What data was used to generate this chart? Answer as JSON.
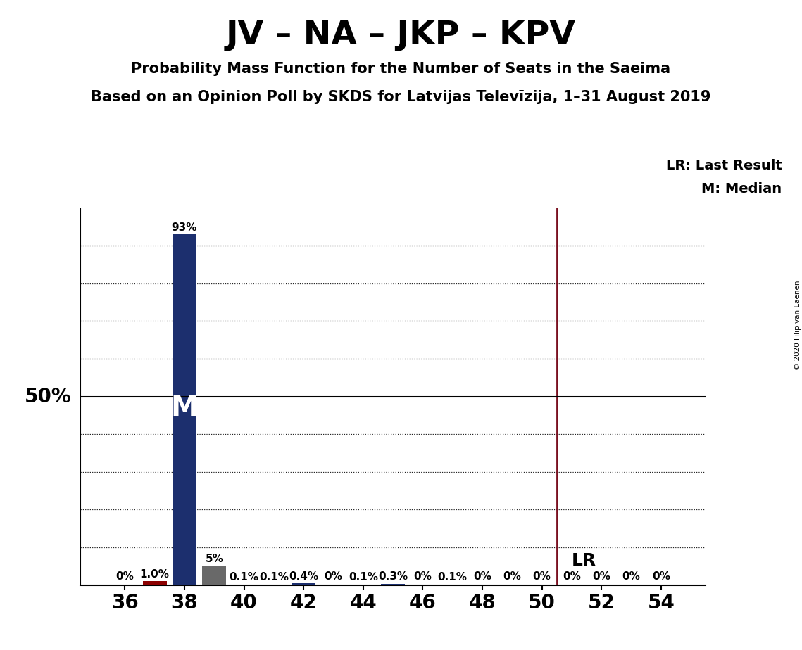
{
  "title": "JV – NA – JKP – KPV",
  "subtitle1": "Probability Mass Function for the Number of Seats in the Saeima",
  "subtitle2": "Based on an Opinion Poll by SKDS for Latvijas Televīzija, 1–31 August 2019",
  "copyright": "© 2020 Filip van Laenen",
  "seats": [
    36,
    37,
    38,
    39,
    40,
    41,
    42,
    43,
    44,
    45,
    46,
    47,
    48,
    49,
    50,
    51,
    52,
    53,
    54
  ],
  "probabilities": [
    0.0,
    1.0,
    93.0,
    5.0,
    0.1,
    0.1,
    0.4,
    0.0,
    0.1,
    0.3,
    0.0,
    0.1,
    0.0,
    0.0,
    0.0,
    0.0,
    0.0,
    0.0,
    0.0
  ],
  "labels": [
    "0%",
    "1.0%",
    "93%",
    "5%",
    "0.1%",
    "0.1%",
    "0.4%",
    "0%",
    "0.1%",
    "0.3%",
    "0%",
    "0.1%",
    "0%",
    "0%",
    "0%",
    "0%",
    "0%",
    "0%",
    "0%"
  ],
  "bar_colors": [
    "#8b0000",
    "#8b0000",
    "#1c2f6e",
    "#696969",
    "#1c2f6e",
    "#1c2f6e",
    "#1c2f6e",
    "#1c2f6e",
    "#1c2f6e",
    "#1c2f6e",
    "#1c2f6e",
    "#1c2f6e",
    "#1c2f6e",
    "#1c2f6e",
    "#1c2f6e",
    "#1c2f6e",
    "#1c2f6e",
    "#1c2f6e",
    "#1c2f6e"
  ],
  "median_seat": 38,
  "lr_x": 50.5,
  "lr_label": "LR",
  "lr_legend": "LR: Last Result",
  "m_legend": "M: Median",
  "ylabel_50": "50%",
  "xlim": [
    34.5,
    55.5
  ],
  "ylim": [
    0,
    100
  ],
  "yticks_grid": [
    10,
    20,
    30,
    40,
    60,
    70,
    80,
    90
  ],
  "xticks": [
    36,
    38,
    40,
    42,
    44,
    46,
    48,
    50,
    52,
    54
  ],
  "background_color": "#ffffff",
  "grid_color": "#222222",
  "lr_line_color": "#7a1020",
  "title_fontsize": 34,
  "subtitle1_fontsize": 15,
  "subtitle2_fontsize": 15,
  "label_fontsize": 11,
  "tick_fontsize": 20,
  "ylabel50_fontsize": 20,
  "legend_fontsize": 14,
  "m_label_fontsize": 28
}
